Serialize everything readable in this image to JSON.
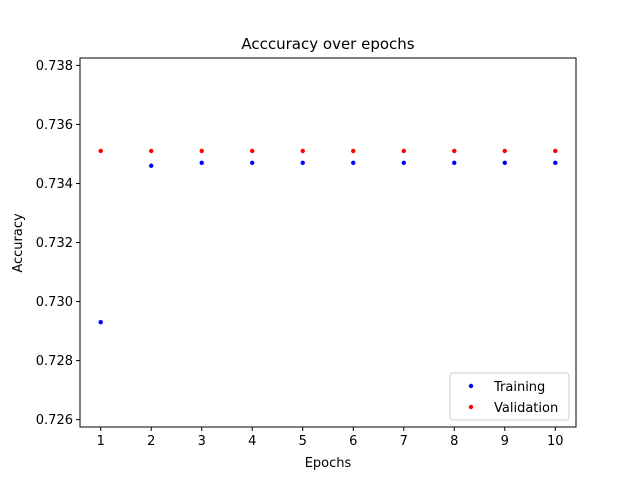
{
  "chart_data": {
    "type": "scatter",
    "title": "Acccuracy over epochs",
    "xlabel": "Epochs",
    "ylabel": "Accuracy",
    "xlim": [
      0.59,
      10.41
    ],
    "ylim": [
      0.72575,
      0.73825
    ],
    "xticks": [
      1,
      2,
      3,
      4,
      5,
      6,
      7,
      8,
      9,
      10
    ],
    "yticks": [
      0.726,
      0.728,
      0.73,
      0.732,
      0.734,
      0.736,
      0.738
    ],
    "ytick_labels": [
      "0.726",
      "0.728",
      "0.730",
      "0.732",
      "0.734",
      "0.736",
      "0.738"
    ],
    "grid": false,
    "legend_position": "lower-right",
    "series": [
      {
        "name": "Training",
        "color": "#0000ff",
        "x": [
          1,
          2,
          3,
          4,
          5,
          6,
          7,
          8,
          9,
          10
        ],
        "y": [
          0.7293,
          0.7346,
          0.7347,
          0.7347,
          0.7347,
          0.7347,
          0.7347,
          0.7347,
          0.7347,
          0.7347
        ]
      },
      {
        "name": "Validation",
        "color": "#ff0000",
        "x": [
          1,
          2,
          3,
          4,
          5,
          6,
          7,
          8,
          9,
          10
        ],
        "y": [
          0.7351,
          0.7351,
          0.7351,
          0.7351,
          0.7351,
          0.7351,
          0.7351,
          0.7351,
          0.7351,
          0.7351
        ]
      }
    ]
  }
}
